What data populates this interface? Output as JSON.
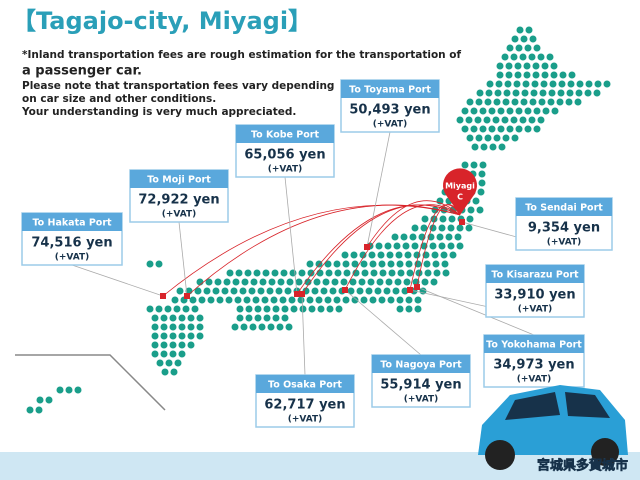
{
  "header": {
    "title": "【Tagajo-city, Miyagi】",
    "notes": [
      "*Inland transportation fees are rough estimation for the transportation of",
      "a passenger car.",
      "Please note that transportation fees vary depending",
      "on car size and other conditions.",
      "Your understanding is very much appreciated."
    ]
  },
  "pin": {
    "label": "Miyagi",
    "sub": "C"
  },
  "ports": [
    {
      "name": "To Hakata Port",
      "price": "74,516 yen",
      "tax": "(+VAT)"
    },
    {
      "name": "To Moji Port",
      "price": "72,922 yen",
      "tax": "(+VAT)"
    },
    {
      "name": "To Kobe Port",
      "price": "65,056 yen",
      "tax": "(+VAT)"
    },
    {
      "name": "To Toyama Port",
      "price": "50,493 yen",
      "tax": "(+VAT)"
    },
    {
      "name": "To Sendai Port",
      "price": "9,354 yen",
      "tax": "(+VAT)"
    },
    {
      "name": "To Kisarazu Port",
      "price": "33,910 yen",
      "tax": "(+VAT)"
    },
    {
      "name": "To Yokohama Port",
      "price": "34,973 yen",
      "tax": "(+VAT)"
    },
    {
      "name": "To Nagoya Port",
      "price": "55,914 yen",
      "tax": "(+VAT)"
    },
    {
      "name": "To Osaka Port",
      "price": "62,717 yen",
      "tax": "(+VAT)"
    }
  ],
  "footer": {
    "location": "宮城県多賀城市"
  }
}
